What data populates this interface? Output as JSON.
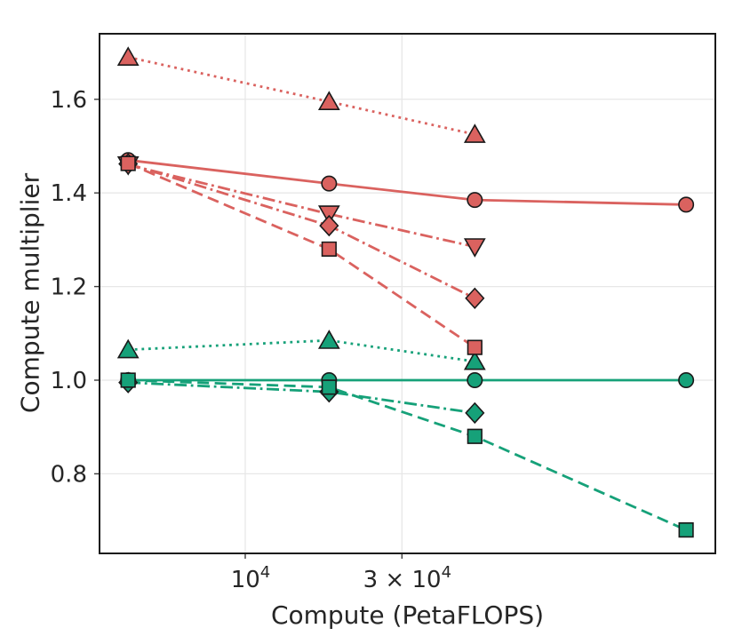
{
  "figure": {
    "background": "#ffffff",
    "text_color": "#262626",
    "grid_color": "#e7e7e7",
    "spine_color": "#1a1a1a",
    "marker_edge_color": "#1a1a1a"
  },
  "chart_data": {
    "type": "line",
    "title": "",
    "xlabel": "Compute (PetaFLOPS)",
    "ylabel": "Compute multiplier",
    "x_scale": "log",
    "y_scale": "linear",
    "xlim": [
      3600,
      270000
    ],
    "ylim": [
      0.63,
      1.74
    ],
    "grid": true,
    "legend": "none",
    "x_ticks": [
      {
        "value": 10000,
        "label": "10⁴",
        "base": "10",
        "exp": "4"
      },
      {
        "value": 30000,
        "label": "3 × 10⁴",
        "base": "3 × 10",
        "exp": "4"
      }
    ],
    "y_ticks": [
      {
        "value": 0.8,
        "label": "0.8"
      },
      {
        "value": 1.0,
        "label": "1.0"
      },
      {
        "value": 1.2,
        "label": "1.2"
      },
      {
        "value": 1.4,
        "label": "1.4"
      },
      {
        "value": 1.6,
        "label": "1.6"
      }
    ],
    "series": [
      {
        "name": "green-dotted-triangle-up",
        "color": "#16a179",
        "linestyle": "dotted",
        "marker": "triangle-up",
        "x": [
          4400,
          18000,
          50000
        ],
        "y": [
          1.065,
          1.085,
          1.04
        ]
      },
      {
        "name": "green-solid-circle",
        "color": "#16a179",
        "linestyle": "solid",
        "marker": "circle",
        "x": [
          4400,
          18000,
          50000,
          220000
        ],
        "y": [
          1.0,
          1.0,
          1.0,
          1.0
        ]
      },
      {
        "name": "green-dashdot-diamond",
        "color": "#16a179",
        "linestyle": "dashdot",
        "marker": "diamond",
        "x": [
          4400,
          18000,
          50000
        ],
        "y": [
          0.995,
          0.975,
          0.93
        ]
      },
      {
        "name": "green-dashed-square",
        "color": "#16a179",
        "linestyle": "dashed",
        "marker": "square",
        "x": [
          4400,
          18000,
          50000,
          220000
        ],
        "y": [
          1.0,
          0.985,
          0.88,
          0.68
        ]
      },
      {
        "name": "red-dotted-triangle-up",
        "color": "#da625f",
        "linestyle": "dotted",
        "marker": "triangle-up",
        "x": [
          4400,
          18000,
          50000
        ],
        "y": [
          1.69,
          1.595,
          1.525
        ]
      },
      {
        "name": "red-solid-circle",
        "color": "#da625f",
        "linestyle": "solid",
        "marker": "circle",
        "x": [
          4400,
          18000,
          50000,
          220000
        ],
        "y": [
          1.47,
          1.42,
          1.385,
          1.375
        ]
      },
      {
        "name": "red-dashdot-triangle-down",
        "color": "#da625f",
        "linestyle": "dashdot",
        "marker": "triangle-down",
        "x": [
          4400,
          18000,
          50000
        ],
        "y": [
          1.46,
          1.355,
          1.285
        ]
      },
      {
        "name": "red-dashdot-diamond",
        "color": "#da625f",
        "linestyle": "dashdot",
        "marker": "diamond",
        "x": [
          4400,
          18000,
          50000
        ],
        "y": [
          1.462,
          1.33,
          1.175
        ]
      },
      {
        "name": "red-dashed-square",
        "color": "#da625f",
        "linestyle": "dashed",
        "marker": "square",
        "x": [
          4400,
          18000,
          50000
        ],
        "y": [
          1.463,
          1.28,
          1.07
        ]
      }
    ]
  }
}
